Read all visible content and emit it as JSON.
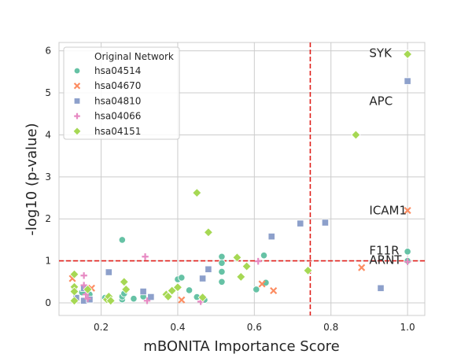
{
  "chart_data": {
    "type": "scatter",
    "xlabel": "mBONITA Importance Score",
    "ylabel": "-log10 (p-value)",
    "xlim": [
      0.09,
      1.045
    ],
    "ylim": [
      -0.3,
      6.2
    ],
    "x_ticks": [
      0.2,
      0.4,
      0.6,
      0.8,
      1.0
    ],
    "x_tick_labels": [
      "0.2",
      "0.4",
      "0.6",
      "0.8",
      "1.0"
    ],
    "y_ticks": [
      0,
      1,
      2,
      3,
      4,
      5,
      6
    ],
    "y_tick_labels": [
      "0",
      "1",
      "2",
      "3",
      "4",
      "5",
      "6"
    ],
    "grid": true,
    "legend_title": "Original Network",
    "legend_position": "top-left",
    "thresholds": {
      "x": 0.746,
      "y": 1.0,
      "color": "#e0201b"
    },
    "annotations": [
      {
        "text": "SYK",
        "x": 0.9,
        "y": 5.95
      },
      {
        "text": "APC",
        "x": 0.9,
        "y": 4.8
      },
      {
        "text": "ICAM1",
        "x": 0.9,
        "y": 2.2
      },
      {
        "text": "F11R",
        "x": 0.9,
        "y": 1.25
      },
      {
        "text": "ARNT",
        "x": 0.9,
        "y": 1.02
      }
    ],
    "series": [
      {
        "name": "hsa04514",
        "marker": "circle",
        "color": "#66c2a5",
        "points": [
          [
            0.13,
            0.3
          ],
          [
            0.15,
            0.25
          ],
          [
            0.17,
            0.2
          ],
          [
            0.21,
            0.12
          ],
          [
            0.22,
            0.1
          ],
          [
            0.255,
            0.08
          ],
          [
            0.255,
            0.15
          ],
          [
            0.255,
            1.5
          ],
          [
            0.26,
            0.22
          ],
          [
            0.285,
            0.1
          ],
          [
            0.31,
            0.15
          ],
          [
            0.4,
            0.56
          ],
          [
            0.41,
            0.6
          ],
          [
            0.43,
            0.3
          ],
          [
            0.45,
            0.14
          ],
          [
            0.47,
            0.07
          ],
          [
            0.515,
            1.1
          ],
          [
            0.515,
            0.95
          ],
          [
            0.515,
            0.74
          ],
          [
            0.515,
            0.5
          ],
          [
            0.605,
            0.32
          ],
          [
            0.625,
            1.13
          ],
          [
            0.63,
            0.48
          ],
          [
            1.0,
            1.22
          ],
          [
            1.0,
            1.0
          ]
        ]
      },
      {
        "name": "hsa04670",
        "marker": "x",
        "color": "#fc8d62",
        "points": [
          [
            0.125,
            0.58
          ],
          [
            0.175,
            0.35
          ],
          [
            0.41,
            0.07
          ],
          [
            0.62,
            0.45
          ],
          [
            0.65,
            0.29
          ],
          [
            0.88,
            0.84
          ],
          [
            1.0,
            2.2
          ]
        ]
      },
      {
        "name": "hsa04810",
        "marker": "square",
        "color": "#8da0cb",
        "points": [
          [
            0.135,
            0.12
          ],
          [
            0.155,
            0.35
          ],
          [
            0.155,
            0.05
          ],
          [
            0.17,
            0.08
          ],
          [
            0.22,
            0.73
          ],
          [
            0.31,
            0.27
          ],
          [
            0.33,
            0.14
          ],
          [
            0.465,
            0.58
          ],
          [
            0.48,
            0.8
          ],
          [
            0.645,
            1.58
          ],
          [
            0.72,
            1.89
          ],
          [
            0.785,
            1.91
          ],
          [
            0.93,
            0.35
          ],
          [
            1.0,
            5.28
          ]
        ]
      },
      {
        "name": "hsa04066",
        "marker": "plus",
        "color": "#e78ac3",
        "points": [
          [
            0.155,
            0.65
          ],
          [
            0.155,
            0.42
          ],
          [
            0.16,
            0.2
          ],
          [
            0.165,
            0.1
          ],
          [
            0.315,
            1.1
          ],
          [
            0.32,
            0.05
          ],
          [
            0.46,
            0.03
          ],
          [
            0.61,
            0.99
          ],
          [
            1.0,
            0.98
          ]
        ]
      },
      {
        "name": "hsa04151",
        "marker": "diamond",
        "color": "#a6d854",
        "points": [
          [
            0.13,
            0.68
          ],
          [
            0.13,
            0.38
          ],
          [
            0.13,
            0.27
          ],
          [
            0.13,
            0.05
          ],
          [
            0.165,
            0.32
          ],
          [
            0.215,
            0.08
          ],
          [
            0.22,
            0.15
          ],
          [
            0.225,
            0.05
          ],
          [
            0.26,
            0.5
          ],
          [
            0.265,
            0.32
          ],
          [
            0.37,
            0.2
          ],
          [
            0.375,
            0.15
          ],
          [
            0.385,
            0.29
          ],
          [
            0.4,
            0.37
          ],
          [
            0.45,
            2.62
          ],
          [
            0.465,
            0.13
          ],
          [
            0.48,
            1.68
          ],
          [
            0.555,
            1.08
          ],
          [
            0.565,
            0.62
          ],
          [
            0.58,
            0.87
          ],
          [
            0.74,
            0.77
          ],
          [
            0.865,
            4.0
          ],
          [
            1.0,
            5.92
          ]
        ]
      }
    ]
  }
}
